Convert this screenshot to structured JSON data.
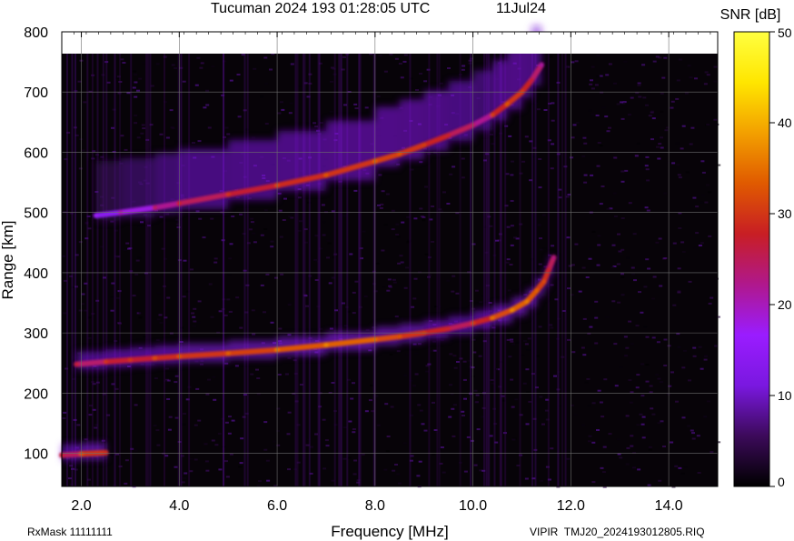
{
  "chart_data": {
    "type": "heatmap",
    "title": "Tucuman 2024 193 01:28:05 UTC",
    "date": "11Jul24",
    "xlabel": "Frequency [MHz]",
    "ylabel": "Range [km]",
    "xlim": [
      1.6,
      15.0
    ],
    "ylim": [
      45,
      800
    ],
    "x_ticks": [
      2.0,
      4.0,
      6.0,
      8.0,
      10.0,
      12.0,
      14.0
    ],
    "x_tick_labels": [
      "2.0",
      "4.0",
      "6.0",
      "8.0",
      "10.0",
      "12.0",
      "14.0"
    ],
    "y_ticks": [
      100,
      200,
      300,
      400,
      500,
      600,
      700,
      800
    ],
    "y_tick_labels": [
      "100",
      "200",
      "300",
      "400",
      "500",
      "600",
      "700",
      "800"
    ],
    "grid": true,
    "colorbar": {
      "label": "SNR [dB]",
      "min": 0,
      "max": 50,
      "ticks": [
        0,
        10,
        20,
        30,
        40,
        50
      ],
      "tick_labels": [
        "0",
        "10",
        "20",
        "30",
        "40",
        "50"
      ],
      "colors": [
        "#000000",
        "#3c0a5a",
        "#7a18e0",
        "#9a1cff",
        "#b0188c",
        "#c81e24",
        "#e05a00",
        "#f3a000",
        "#ffe600",
        "#ffff40"
      ]
    },
    "series": [
      {
        "x": [
          1.9,
          2.5,
          3.0,
          3.5,
          4.0,
          5.0,
          6.0,
          7.0,
          8.0,
          8.5,
          9.0,
          9.5,
          10.0,
          10.4,
          10.8,
          11.1,
          11.3,
          11.45,
          11.55,
          11.65
        ],
        "y": [
          248,
          252,
          255,
          258,
          261,
          266,
          272,
          280,
          289,
          294,
          300,
          307,
          316,
          325,
          338,
          352,
          370,
          385,
          405,
          425
        ],
        "snr": [
          24,
          27,
          27,
          29,
          30,
          31,
          33,
          34,
          32,
          30,
          28,
          25,
          28,
          32,
          34,
          33,
          31,
          29,
          25,
          20
        ]
      },
      {
        "x": [
          2.3,
          2.8,
          3.5,
          4.0,
          5.0,
          6.0,
          7.0,
          8.0,
          8.5,
          9.0,
          9.5,
          10.0,
          10.4,
          10.7,
          11.0,
          11.2,
          11.4
        ],
        "y": [
          495,
          500,
          508,
          515,
          530,
          545,
          562,
          585,
          597,
          612,
          628,
          645,
          662,
          680,
          700,
          720,
          745
        ],
        "snr": [
          14,
          18,
          22,
          25,
          27,
          29,
          30,
          31,
          30,
          28,
          25,
          22,
          28,
          30,
          28,
          24,
          18
        ]
      },
      {
        "x": [
          1.6,
          2.0,
          2.5
        ],
        "y": [
          97,
          99,
          101
        ],
        "snr": [
          25,
          30,
          26
        ]
      }
    ],
    "footer_left": "RxMask 11111111",
    "footer_right": "VIPIR  TMJ20_2024193012805.RIQ"
  }
}
